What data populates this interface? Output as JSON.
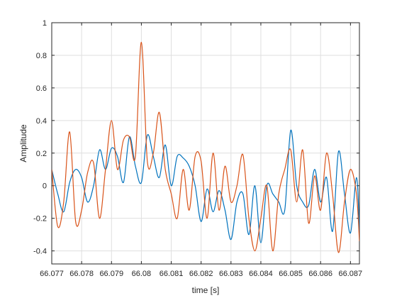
{
  "chart_data": {
    "type": "line",
    "xlabel": "time [s]",
    "ylabel": "Amplitude",
    "xlim": [
      66.077,
      66.0873
    ],
    "ylim": [
      -0.48,
      1.0
    ],
    "grid": true,
    "x_ticks": [
      {
        "value": 66.077,
        "label": "66.077"
      },
      {
        "value": 66.078,
        "label": "66.078"
      },
      {
        "value": 66.079,
        "label": "66.079"
      },
      {
        "value": 66.08,
        "label": "66.08"
      },
      {
        "value": 66.081,
        "label": "66.081"
      },
      {
        "value": 66.082,
        "label": "66.082"
      },
      {
        "value": 66.083,
        "label": "66.083"
      },
      {
        "value": 66.084,
        "label": "66.084"
      },
      {
        "value": 66.085,
        "label": "66.085"
      },
      {
        "value": 66.086,
        "label": "66.086"
      },
      {
        "value": 66.087,
        "label": "66.087"
      }
    ],
    "y_ticks": [
      {
        "value": -0.4,
        "label": "-0.4"
      },
      {
        "value": -0.2,
        "label": "-0.2"
      },
      {
        "value": 0,
        "label": "0"
      },
      {
        "value": 0.2,
        "label": "0.2"
      },
      {
        "value": 0.4,
        "label": "0.4"
      },
      {
        "value": 0.6,
        "label": "0.6"
      },
      {
        "value": 0.8,
        "label": "0.8"
      },
      {
        "value": 1,
        "label": "1"
      }
    ],
    "series": [
      {
        "color": "#0072BD",
        "x": [
          66.077,
          66.0772,
          66.0774,
          66.0776,
          66.0778,
          66.078,
          66.0782,
          66.0784,
          66.0786,
          66.0788,
          66.079,
          66.0792,
          66.0794,
          66.0796,
          66.0798,
          66.08,
          66.0802,
          66.0804,
          66.0806,
          66.0808,
          66.081,
          66.0812,
          66.0814,
          66.0816,
          66.0818,
          66.082,
          66.0822,
          66.0824,
          66.0826,
          66.0828,
          66.083,
          66.0832,
          66.0834,
          66.0836,
          66.0838,
          66.084,
          66.0842,
          66.0844,
          66.0846,
          66.0848,
          66.085,
          66.0852,
          66.0854,
          66.0856,
          66.0858,
          66.086,
          66.0862,
          66.0864,
          66.0866,
          66.0868,
          66.087,
          66.0872,
          66.0873
        ],
        "y": [
          0.1,
          -0.05,
          -0.16,
          0.02,
          0.1,
          0.05,
          -0.1,
          0.0,
          0.22,
          0.1,
          0.23,
          0.18,
          0.02,
          0.3,
          0.12,
          0.02,
          0.31,
          0.18,
          0.05,
          0.25,
          0.0,
          0.18,
          0.17,
          0.12,
          0.0,
          -0.22,
          -0.02,
          -0.16,
          -0.03,
          -0.15,
          -0.33,
          -0.1,
          -0.05,
          -0.3,
          0.0,
          -0.35,
          0.0,
          -0.05,
          -0.1,
          -0.15,
          0.34,
          0.0,
          -0.1,
          -0.12,
          0.1,
          -0.1,
          0.05,
          -0.28,
          0.21,
          -0.05,
          -0.29,
          0.05,
          -0.28
        ]
      },
      {
        "color": "#D95319",
        "x": [
          66.077,
          66.0772,
          66.0774,
          66.0776,
          66.0778,
          66.078,
          66.0782,
          66.0784,
          66.0786,
          66.0788,
          66.079,
          66.0792,
          66.0794,
          66.0796,
          66.0798,
          66.08,
          66.0802,
          66.0804,
          66.0806,
          66.0808,
          66.081,
          66.0812,
          66.0814,
          66.0816,
          66.0818,
          66.082,
          66.0822,
          66.0824,
          66.0826,
          66.0828,
          66.083,
          66.0832,
          66.0834,
          66.0836,
          66.0838,
          66.084,
          66.0842,
          66.0844,
          66.0846,
          66.0848,
          66.085,
          66.0852,
          66.0854,
          66.0856,
          66.0858,
          66.086,
          66.0862,
          66.0864,
          66.0866,
          66.0868,
          66.087,
          66.0872,
          66.0873
        ],
        "y": [
          0.1,
          -0.25,
          -0.1,
          0.33,
          -0.22,
          -0.15,
          0.08,
          0.14,
          -0.2,
          0.1,
          0.4,
          0.1,
          0.28,
          0.3,
          0.18,
          0.88,
          0.15,
          0.2,
          0.45,
          0.1,
          -0.05,
          -0.2,
          0.1,
          -0.15,
          0.18,
          0.15,
          -0.2,
          0.2,
          -0.15,
          0.12,
          -0.1,
          0.0,
          0.19,
          -0.2,
          -0.4,
          -0.2,
          0.0,
          -0.4,
          -0.05,
          0.1,
          0.22,
          -0.1,
          0.22,
          -0.23,
          0.06,
          -0.15,
          0.2,
          -0.05,
          -0.41,
          -0.1,
          0.1,
          -0.05,
          -0.34
        ]
      }
    ]
  }
}
